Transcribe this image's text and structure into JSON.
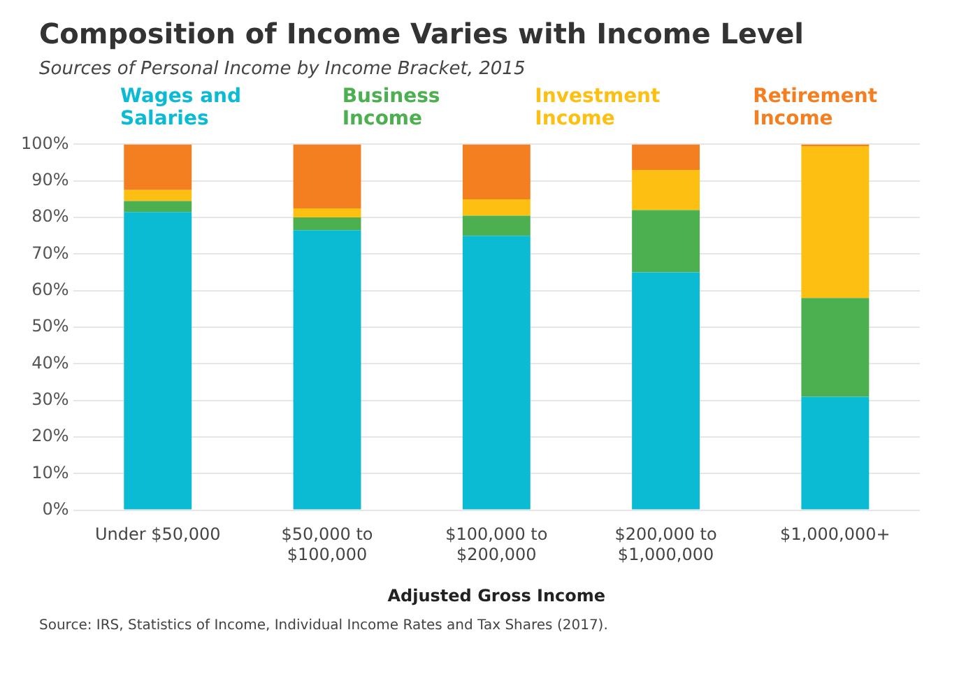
{
  "chart_data": {
    "type": "bar",
    "title": "Composition of Income Varies with Income Level",
    "subtitle": "Sources of Personal Income by Income Bracket, 2015",
    "xlabel": "Adjusted Gross Income",
    "categories": [
      "Under $50,000",
      "$50,000 to $100,000",
      "$100,000 to $200,000",
      "$200,000 to $1,000,000",
      "$1,000,000+"
    ],
    "stacked": true,
    "legend": "top",
    "grid": "y",
    "ylim": [
      0,
      100
    ],
    "yticks": [
      {
        "value": 0,
        "label": "0%"
      },
      {
        "value": 10,
        "label": "10%"
      },
      {
        "value": 20,
        "label": "20%"
      },
      {
        "value": 30,
        "label": "30%"
      },
      {
        "value": 40,
        "label": "40%"
      },
      {
        "value": 50,
        "label": "50%"
      },
      {
        "value": 60,
        "label": "60%"
      },
      {
        "value": 70,
        "label": "70%"
      },
      {
        "value": 80,
        "label": "80%"
      },
      {
        "value": 90,
        "label": "90%"
      },
      {
        "value": 100,
        "label": "100%"
      }
    ],
    "series": [
      {
        "name": "Wages and Salaries",
        "color": "#0bbbd4",
        "values": [
          81.5,
          76.5,
          75,
          65,
          31
        ]
      },
      {
        "name": "Business Income",
        "color": "#4caf50",
        "values": [
          3,
          3.5,
          5.5,
          17,
          27
        ]
      },
      {
        "name": "Investment Income",
        "color": "#fdc012",
        "values": [
          3,
          2.5,
          4.5,
          11,
          41.5
        ]
      },
      {
        "name": "Retirement Income",
        "color": "#f47f20",
        "values": [
          12.5,
          17.5,
          15,
          7,
          0.5
        ]
      }
    ],
    "annotations": [
      "Source: IRS, Statistics of Income, Individual Income Rates and Tax Shares (2017)."
    ]
  }
}
